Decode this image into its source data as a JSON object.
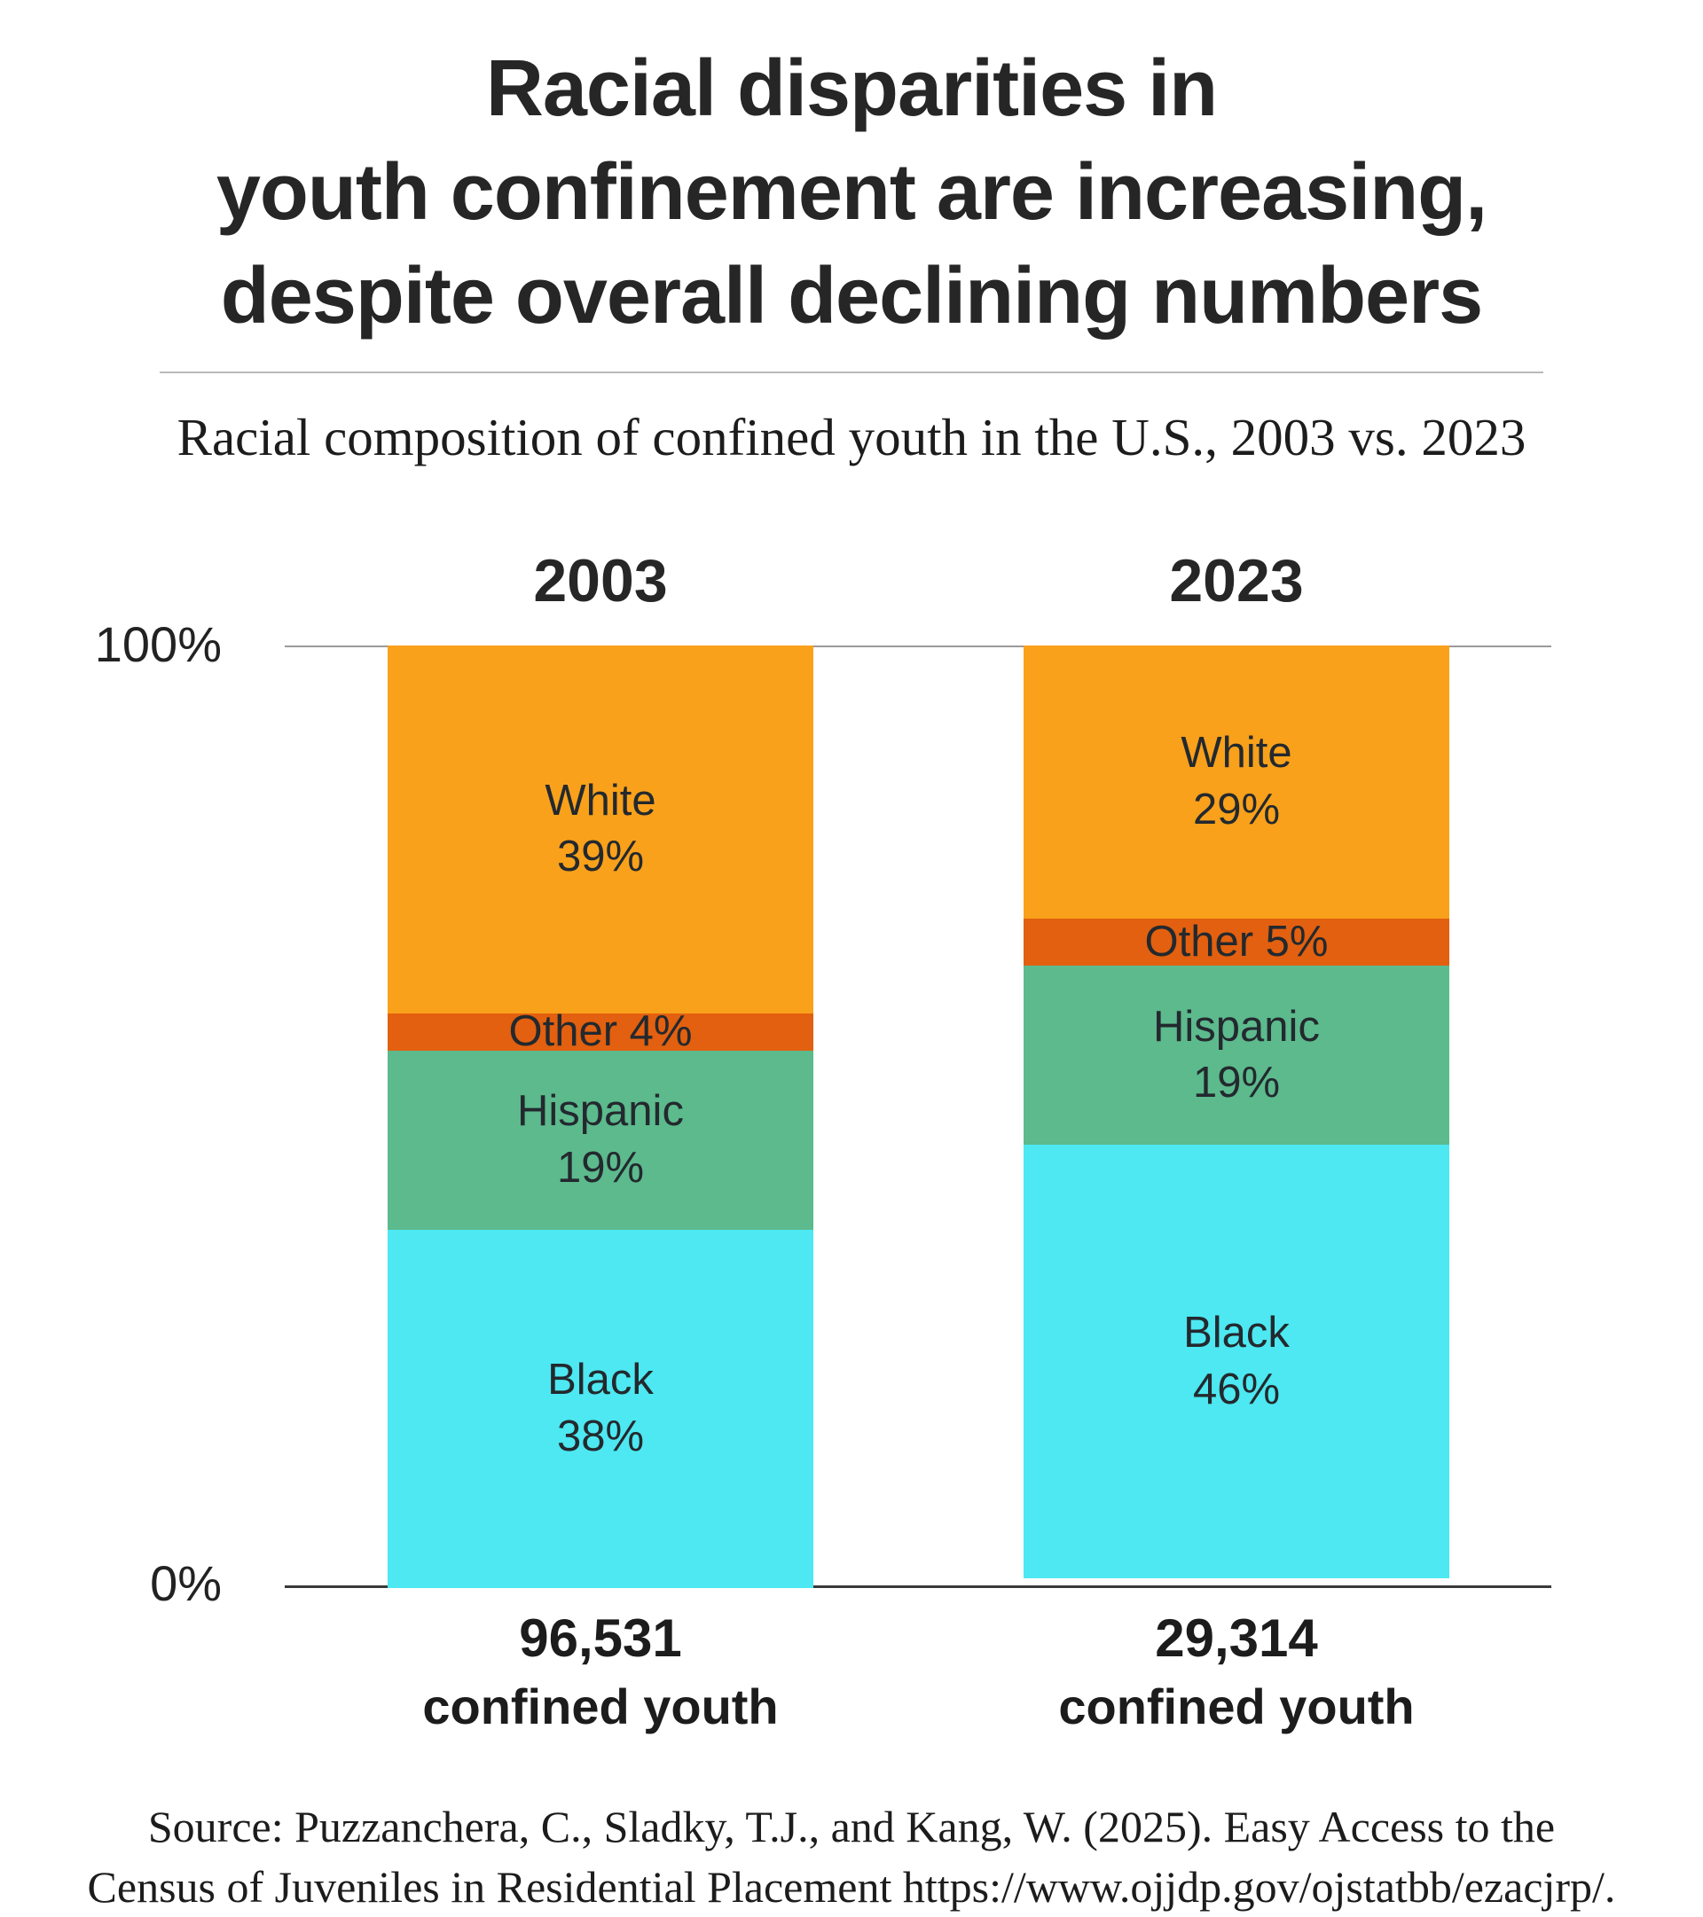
{
  "title_lines": [
    "Racial disparities in",
    "youth confinement are increasing,",
    "despite overall declining numbers"
  ],
  "subtitle": "Racial composition of confined youth in the U.S., 2003 vs. 2023",
  "y_axis": {
    "top": "100%",
    "bottom": "0%"
  },
  "chart_data": {
    "type": "bar",
    "stacked": true,
    "title": "Racial disparities in youth confinement are increasing, despite overall declining numbers",
    "subtitle": "Racial composition of confined youth in the U.S., 2003 vs. 2023",
    "categories": [
      "2003",
      "2023"
    ],
    "ylim": [
      0,
      100
    ],
    "ylabel": "",
    "xlabel": "",
    "series": [
      {
        "name": "White",
        "color": "#F9A11B",
        "values": [
          39,
          29
        ],
        "labels": [
          [
            "White",
            "39%"
          ],
          [
            "White",
            "29%"
          ]
        ]
      },
      {
        "name": "Other",
        "color": "#E2600F",
        "values": [
          4,
          5
        ],
        "labels": [
          [
            "Other 4%"
          ],
          [
            "Other 5%"
          ]
        ]
      },
      {
        "name": "Hispanic",
        "color": "#5CBA8D",
        "values": [
          19,
          19
        ],
        "labels": [
          [
            "Hispanic",
            "19%"
          ],
          [
            "Hispanic",
            "19%"
          ]
        ]
      },
      {
        "name": "Black",
        "color": "#4DE8F1",
        "values": [
          38,
          46
        ],
        "labels": [
          [
            "Black",
            "38%"
          ],
          [
            "Black",
            "46%"
          ]
        ]
      }
    ],
    "totals": [
      {
        "count": "96,531",
        "label": "confined youth"
      },
      {
        "count": "29,314",
        "label": "confined youth"
      }
    ]
  },
  "source_lines": [
    "Source: Puzzanchera, C., Sladky, T.J., and Kang, W. (2025). Easy Access to the",
    "Census of Juveniles in Residential Placement https://www.ojjdp.gov/ojstatbb/ezacjrp/."
  ]
}
